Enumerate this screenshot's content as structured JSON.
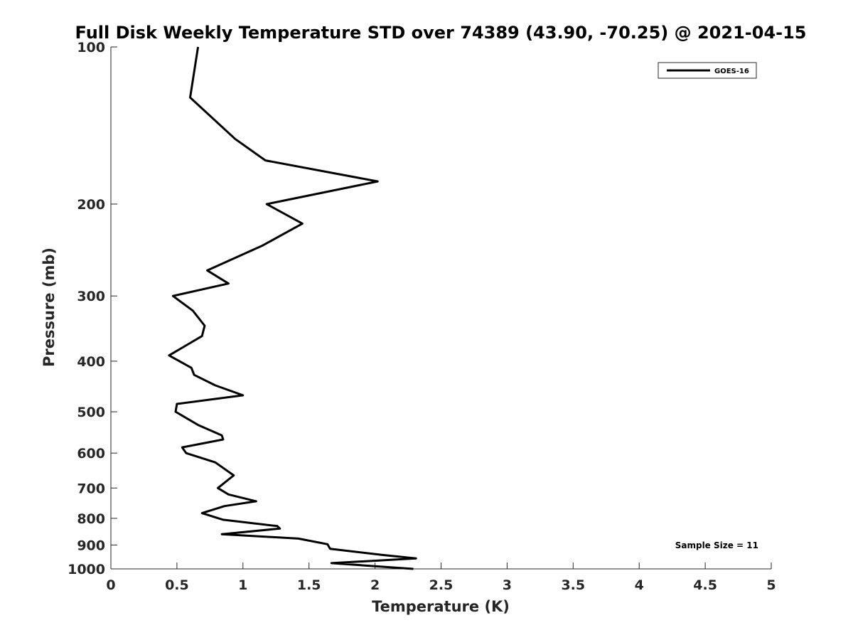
{
  "chart_data": {
    "type": "line",
    "title": "Full Disk Weekly Temperature STD over 74389 (43.90, -70.25) @ 2021-04-15",
    "xlabel": "Temperature (K)",
    "ylabel": "Pressure (mb)",
    "xlim": [
      0,
      5
    ],
    "ylim": [
      100,
      1000
    ],
    "y_scale": "log",
    "y_reversed": true,
    "x_ticks": [
      "0",
      "0.5",
      "1",
      "1.5",
      "2",
      "2.5",
      "3",
      "3.5",
      "4",
      "4.5",
      "5"
    ],
    "y_ticks": [
      "100",
      "200",
      "300",
      "400",
      "500",
      "600",
      "700",
      "800",
      "900",
      "1000"
    ],
    "grid": false,
    "legend_position": "top-right",
    "annotation": "Sample Size = 11",
    "series": [
      {
        "name": "GOES-16",
        "color": "#000000",
        "points": [
          [
            0.66,
            100
          ],
          [
            0.6,
            125
          ],
          [
            0.94,
            150
          ],
          [
            1.17,
            165
          ],
          [
            2.02,
            181
          ],
          [
            1.18,
            200
          ],
          [
            1.45,
            218
          ],
          [
            1.15,
            240
          ],
          [
            0.73,
            268
          ],
          [
            0.89,
            284
          ],
          [
            0.47,
            300
          ],
          [
            0.62,
            320
          ],
          [
            0.71,
            342
          ],
          [
            0.69,
            358
          ],
          [
            0.44,
            390
          ],
          [
            0.61,
            412
          ],
          [
            0.63,
            425
          ],
          [
            0.79,
            445
          ],
          [
            1.0,
            465
          ],
          [
            0.5,
            483
          ],
          [
            0.49,
            500
          ],
          [
            0.66,
            530
          ],
          [
            0.84,
            555
          ],
          [
            0.85,
            565
          ],
          [
            0.54,
            585
          ],
          [
            0.57,
            600
          ],
          [
            0.79,
            625
          ],
          [
            0.93,
            662
          ],
          [
            0.81,
            700
          ],
          [
            0.89,
            720
          ],
          [
            1.1,
            742
          ],
          [
            0.86,
            758
          ],
          [
            0.69,
            782
          ],
          [
            0.85,
            805
          ],
          [
            1.26,
            828
          ],
          [
            1.28,
            837
          ],
          [
            0.84,
            858
          ],
          [
            1.42,
            875
          ],
          [
            1.64,
            897
          ],
          [
            1.66,
            915
          ],
          [
            2.05,
            940
          ],
          [
            2.31,
            955
          ],
          [
            1.67,
            975
          ],
          [
            2.29,
            1000
          ]
        ]
      }
    ]
  }
}
